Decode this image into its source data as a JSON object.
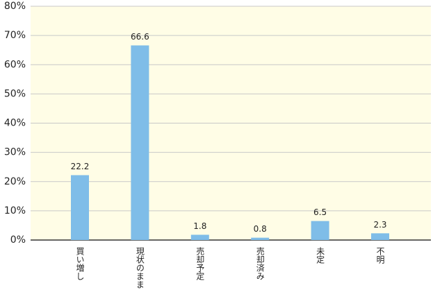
{
  "chart_data": {
    "type": "bar",
    "categories": [
      "買い増し",
      "現状のまま",
      "売却予定",
      "売却済み",
      "未定",
      "不明"
    ],
    "values": [
      22.2,
      66.6,
      1.8,
      0.8,
      6.5,
      2.3
    ],
    "color": "#7fbde8",
    "ylim": [
      0,
      80
    ],
    "yticks": [
      {
        "value": 0,
        "label": "0%"
      },
      {
        "value": 10,
        "label": "10%"
      },
      {
        "value": 20,
        "label": "20%"
      },
      {
        "value": 30,
        "label": "30%"
      },
      {
        "value": 40,
        "label": "40%"
      },
      {
        "value": 50,
        "label": "50%"
      },
      {
        "value": 60,
        "label": "60%"
      },
      {
        "value": 70,
        "label": "70%"
      },
      {
        "value": 80,
        "label": "80%"
      }
    ],
    "grid": true
  }
}
